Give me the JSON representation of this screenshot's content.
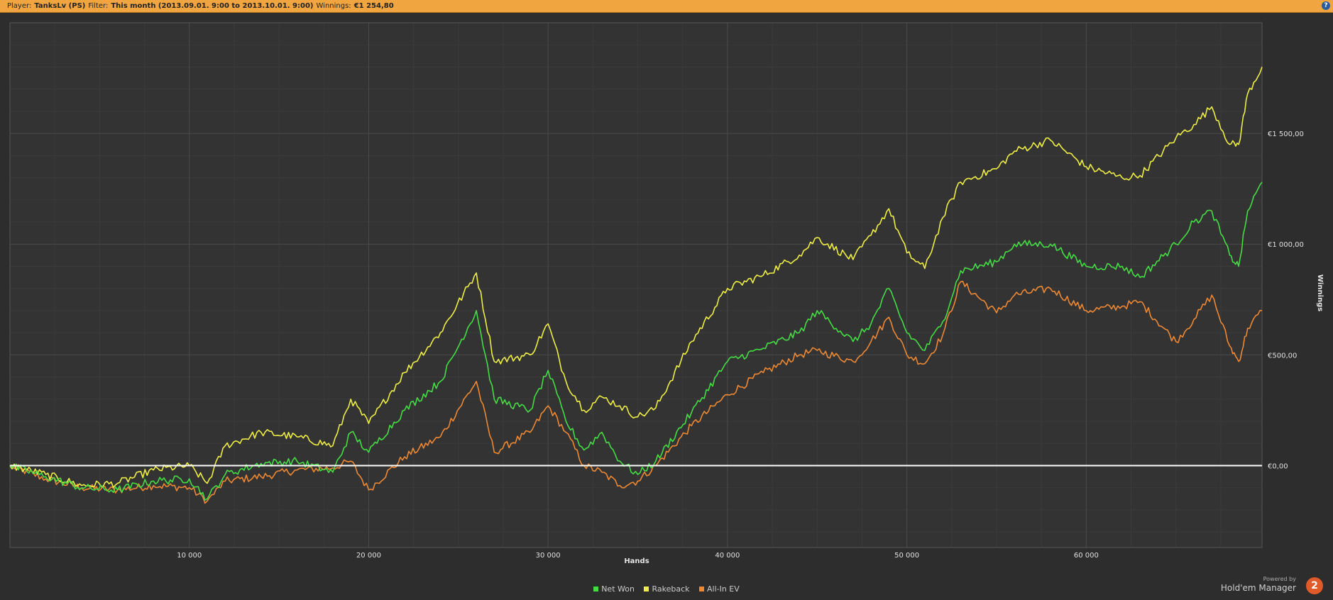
{
  "header": {
    "player_label": "Player:",
    "player_value": "TanksLv (PS)",
    "filter_label": "Filter:",
    "filter_value": "This month (2013.09.01. 9:00 to 2013.10.01. 9:00)",
    "winnings_label": "Winnings:",
    "winnings_value": "€1 254,80",
    "help_icon": "?"
  },
  "branding": {
    "powered_by": "Powered by",
    "product": "Hold'em Manager",
    "logo_text": "2"
  },
  "colors": {
    "net_won": "#44dd44",
    "rakeback": "#eeee44",
    "allin_ev": "#ee8833",
    "zero_line": "#ffffff",
    "background": "#2d2d2d",
    "header_bar": "#f0a540"
  },
  "chart_data": {
    "type": "line",
    "xlabel": "Hands",
    "ylabel": "Winnings",
    "xlim": [
      0,
      69800
    ],
    "ylim": [
      -370,
      2000
    ],
    "x_ticks": [
      10000,
      20000,
      30000,
      40000,
      50000,
      60000
    ],
    "x_tick_labels": [
      "10 000",
      "20 000",
      "30 000",
      "40 000",
      "50 000",
      "60 000"
    ],
    "y_ticks": [
      0,
      500,
      1000,
      1500
    ],
    "y_tick_labels": [
      "€0,00",
      "€500,00",
      "€1 000,00",
      "€1 500,00"
    ],
    "grid": true,
    "legend_position": "bottom-center",
    "series": [
      {
        "name": "Net Won",
        "color": "#44dd44",
        "x": [
          0,
          2000,
          4000,
          6000,
          8000,
          10000,
          11000,
          12000,
          14000,
          16000,
          18000,
          19000,
          20000,
          22000,
          24000,
          26000,
          27000,
          29000,
          30000,
          31000,
          32000,
          33000,
          34000,
          35000,
          36000,
          38000,
          40000,
          42000,
          44000,
          45000,
          47000,
          48000,
          49000,
          50000,
          51000,
          52000,
          53000,
          55000,
          56000,
          58000,
          60000,
          62000,
          63000,
          65000,
          66000,
          67000,
          68000,
          68500,
          69000,
          69800
        ],
        "y": [
          0,
          -50,
          -100,
          -110,
          -70,
          -60,
          -150,
          -40,
          10,
          20,
          -30,
          150,
          60,
          250,
          380,
          700,
          300,
          250,
          430,
          200,
          70,
          150,
          20,
          -40,
          20,
          240,
          470,
          530,
          600,
          700,
          560,
          640,
          800,
          600,
          520,
          650,
          880,
          920,
          1000,
          1000,
          900,
          900,
          850,
          1000,
          1100,
          1150,
          950,
          900,
          1150,
          1280
        ]
      },
      {
        "name": "Rakeback",
        "color": "#eeee44",
        "x": [
          0,
          2000,
          4000,
          6000,
          8000,
          10000,
          11000,
          12000,
          14000,
          16000,
          18000,
          19000,
          20000,
          22000,
          24000,
          26000,
          27000,
          29000,
          30000,
          31000,
          32000,
          33000,
          34000,
          35000,
          36000,
          38000,
          40000,
          42000,
          44000,
          45000,
          47000,
          48000,
          49000,
          50000,
          51000,
          52000,
          53000,
          55000,
          56000,
          58000,
          60000,
          62000,
          63000,
          65000,
          66000,
          67000,
          68000,
          68500,
          69000,
          69800
        ],
        "y": [
          0,
          -40,
          -90,
          -80,
          -20,
          0,
          -80,
          90,
          150,
          130,
          90,
          300,
          190,
          420,
          600,
          870,
          470,
          500,
          640,
          380,
          250,
          310,
          270,
          220,
          260,
          560,
          800,
          860,
          950,
          1030,
          930,
          1040,
          1160,
          960,
          890,
          1120,
          1280,
          1340,
          1420,
          1470,
          1350,
          1300,
          1310,
          1480,
          1540,
          1620,
          1450,
          1450,
          1680,
          1800
        ]
      },
      {
        "name": "All-In EV",
        "color": "#ee8833",
        "x": [
          0,
          2000,
          4000,
          6000,
          8000,
          10000,
          11000,
          12000,
          14000,
          16000,
          18000,
          19000,
          20000,
          22000,
          24000,
          26000,
          27000,
          29000,
          30000,
          31000,
          32000,
          33000,
          34000,
          35000,
          36000,
          38000,
          40000,
          42000,
          44000,
          45000,
          47000,
          48000,
          49000,
          50000,
          51000,
          52000,
          53000,
          55000,
          56000,
          58000,
          60000,
          62000,
          63000,
          65000,
          66000,
          67000,
          68000,
          68500,
          69000,
          69800
        ],
        "y": [
          0,
          -60,
          -100,
          -110,
          -90,
          -100,
          -160,
          -70,
          -50,
          -20,
          -10,
          20,
          -110,
          40,
          130,
          380,
          60,
          150,
          270,
          150,
          0,
          -30,
          -90,
          -70,
          0,
          180,
          320,
          420,
          500,
          520,
          470,
          560,
          670,
          500,
          460,
          590,
          830,
          690,
          770,
          800,
          700,
          720,
          740,
          560,
          660,
          770,
          540,
          470,
          620,
          700
        ]
      }
    ]
  }
}
